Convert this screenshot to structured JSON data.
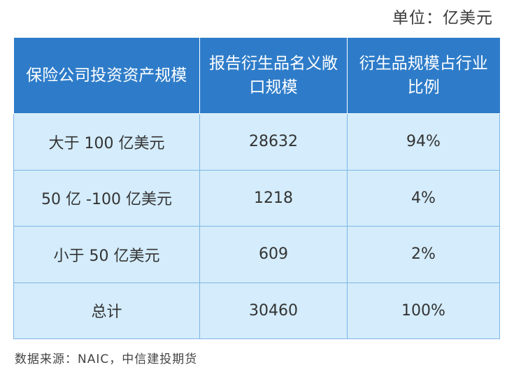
{
  "unit": "单位：亿美元",
  "table": {
    "headers": [
      "保险公司投资资产规模",
      "报告衍生品名义敞口规模",
      "衍生品规模占行业比例"
    ],
    "rows": [
      [
        "大于 100 亿美元",
        "28632",
        "94%"
      ],
      [
        "50 亿 -100 亿美元",
        "1218",
        "4%"
      ],
      [
        "小于 50 亿美元",
        "609",
        "2%"
      ],
      [
        "总计",
        "30460",
        "100%"
      ]
    ]
  },
  "source": "数据来源：NAIC，中信建投期货",
  "colors": {
    "header_bg": "#2e7cc9",
    "cell_bg": "#d4ecfb",
    "grid": "#7fb6e6"
  }
}
